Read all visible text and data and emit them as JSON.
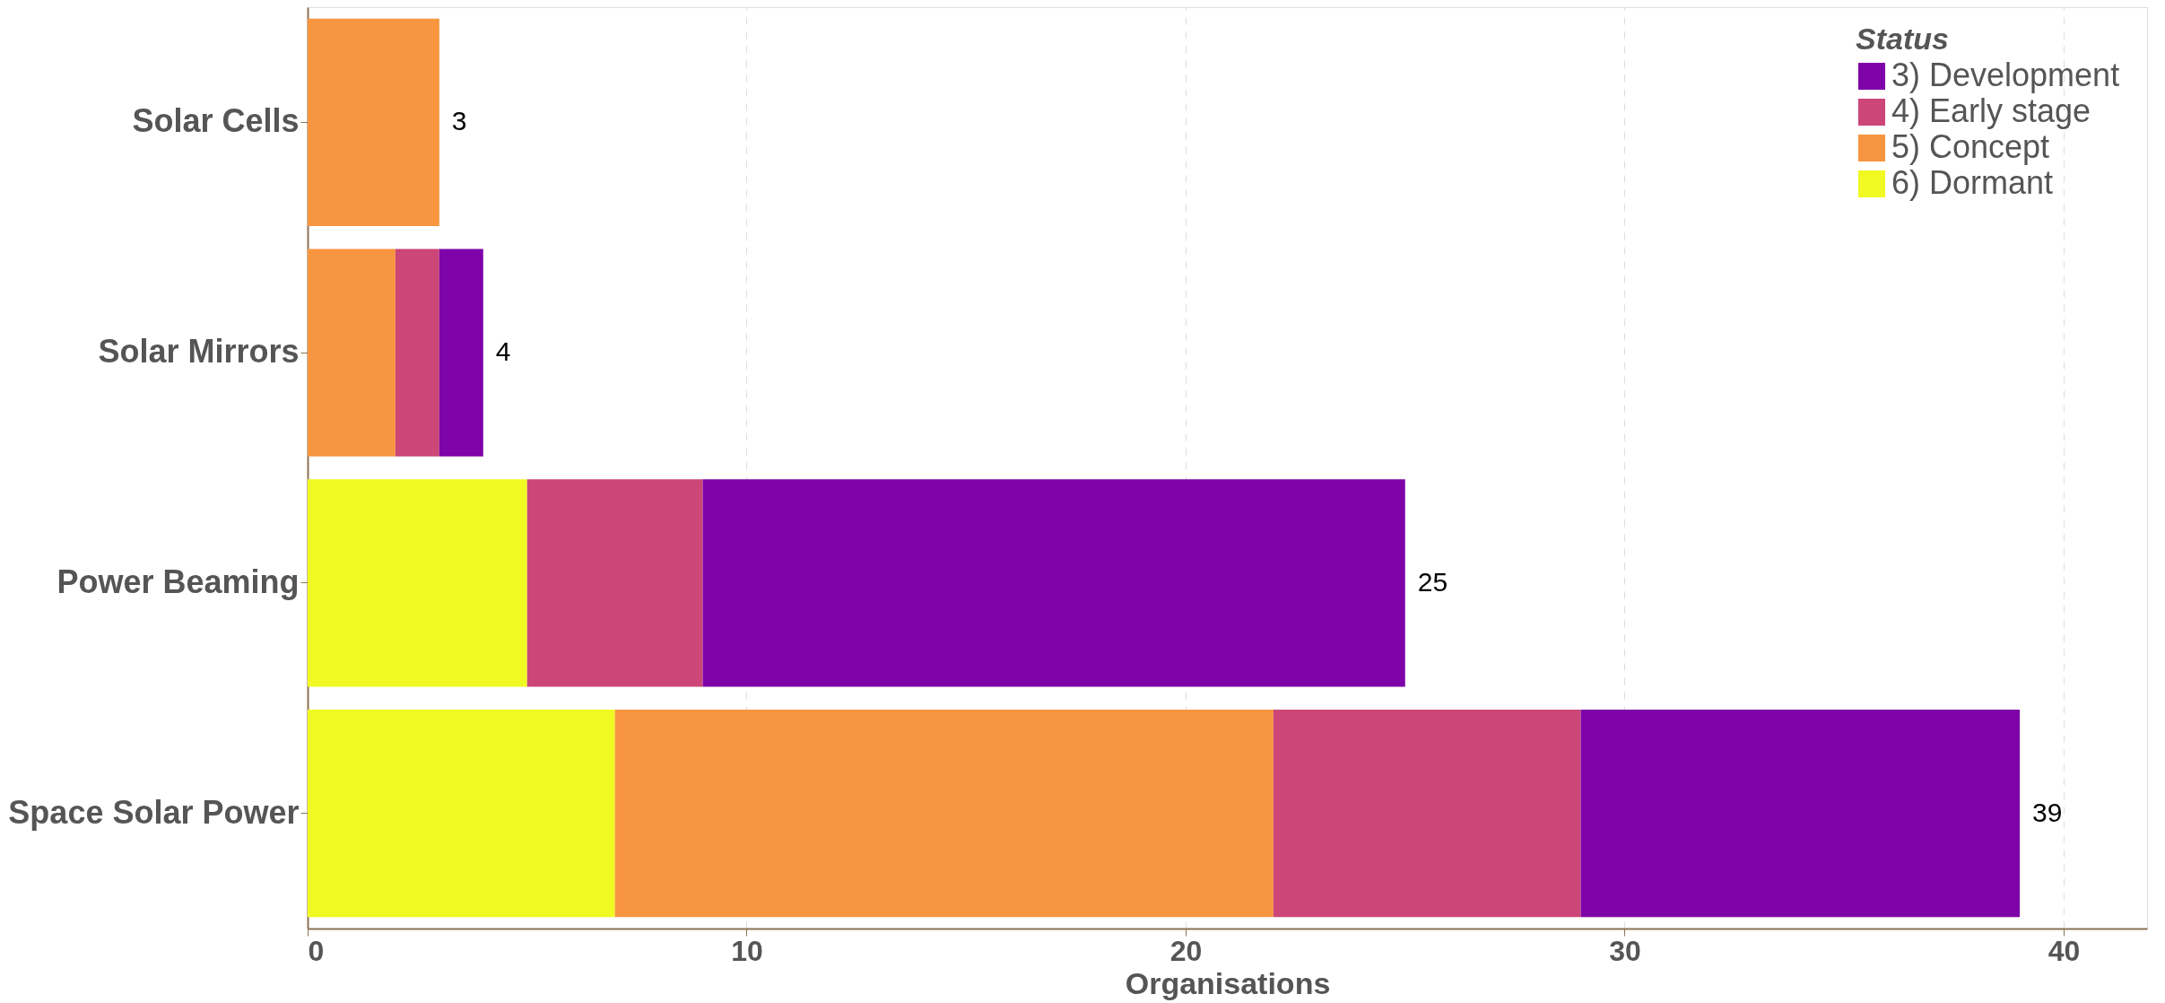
{
  "chart_data": {
    "type": "bar",
    "orientation": "horizontal",
    "stacked": true,
    "categories": [
      "Solar Cells",
      "Solar Mirrors",
      "Power Beaming",
      "Space Solar Power"
    ],
    "series": [
      {
        "name": "6)  Dormant",
        "color": "#f0f921",
        "values": [
          null,
          null,
          5,
          7
        ]
      },
      {
        "name": "5)  Concept",
        "color": "#f89540",
        "values": [
          3,
          2,
          null,
          15
        ]
      },
      {
        "name": "4)  Early stage",
        "color": "#cc4778",
        "values": [
          null,
          1,
          4,
          7
        ]
      },
      {
        "name": "3)  Development",
        "color": "#7e03a8",
        "values": [
          null,
          1,
          16,
          10
        ]
      }
    ],
    "totals": [
      "3",
      "4",
      "25",
      "39"
    ],
    "xlim": [
      0,
      41.9
    ],
    "xticks": [
      0,
      10,
      20,
      30,
      40
    ],
    "xlabel": "Organisations",
    "legend_title": "Status",
    "legend": "top right",
    "grid": "x"
  }
}
